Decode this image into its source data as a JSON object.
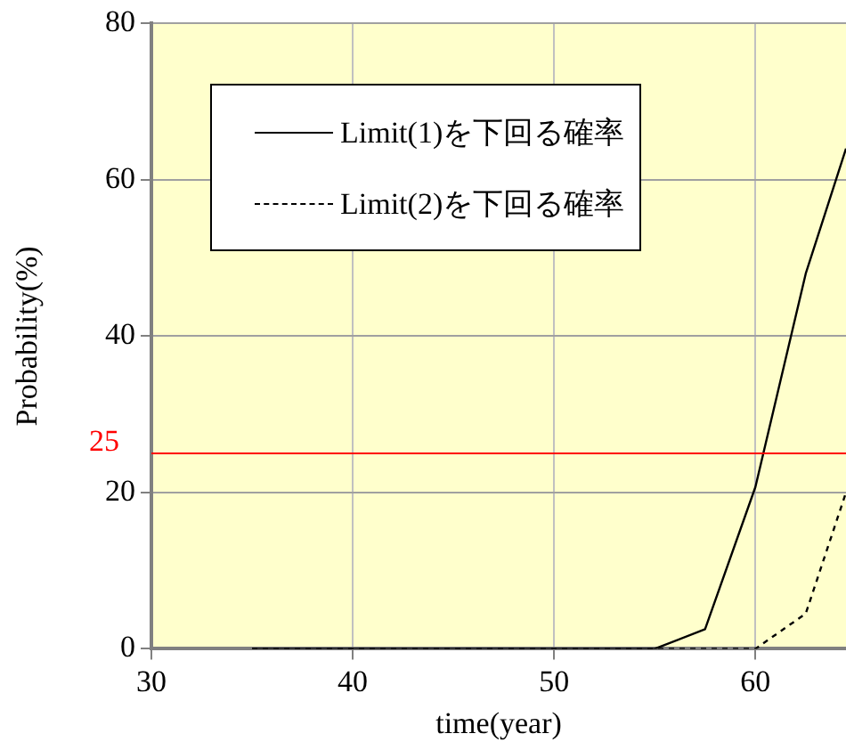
{
  "chart_data": {
    "type": "line",
    "xlabel": "time(year)",
    "ylabel": "Probability(%)",
    "xlim": [
      30,
      64.5
    ],
    "xticks": [
      30,
      40,
      50,
      60
    ],
    "ylim": [
      0,
      80
    ],
    "yticks": [
      0,
      20,
      40,
      60,
      80
    ],
    "grid": true,
    "legend": "top left",
    "marker": "none",
    "series": [
      {
        "name": "Limit(1)を下回る確率",
        "color": "#000000",
        "line_style": "solid",
        "x": [
          35,
          55,
          57.5,
          60,
          62.5,
          64.5
        ],
        "values": [
          0,
          0,
          2.5,
          20.7,
          48,
          64
        ]
      },
      {
        "name": "Limit(2)を下回る確率",
        "color": "#000000",
        "line_style": "dashed",
        "x": [
          35,
          55,
          57.5,
          60,
          62.5,
          64.5
        ],
        "values": [
          0,
          0,
          0,
          0,
          4.5,
          20
        ]
      }
    ],
    "ref_lines": [
      {
        "axis": "y",
        "value": 25,
        "label": "25",
        "color": "#ff0000"
      }
    ]
  }
}
